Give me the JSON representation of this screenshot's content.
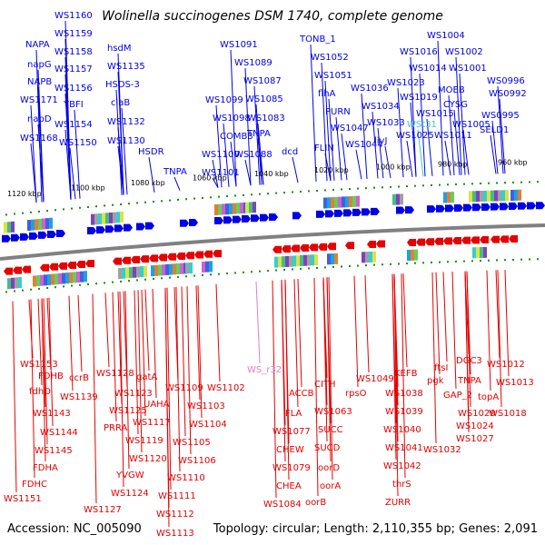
{
  "title": "Wolinella succinogenes DSM 1740, complete genome",
  "accession": "Accession: NC_005090",
  "summary": "Topology: circular; Length: 2,110,355 bp; Genes: 2,091",
  "colors": {
    "forward": "#0000e6",
    "reverse": "#e60000",
    "rna": "#e080c0",
    "trna": "#40c0e0",
    "backbone": "#808080",
    "tick": "#1a8a1a"
  },
  "scale_ticks": [
    "1120 kbp",
    "1100 kbp",
    "1080 kbp",
    "1060 kbp",
    "1040 kbp",
    "1020 kbp",
    "1000 kbp",
    "980 kbp",
    "960 kbp"
  ],
  "top_labels": [
    "WS1160",
    "WS1159",
    "NAPA",
    "WS1158",
    "napG",
    "WS1157",
    "NAPB",
    "WS1156",
    "WS1171",
    "YBFI",
    "napD",
    "WS1154",
    "WS1168",
    "WS1150",
    "hsdM",
    "WS1135",
    "HSDS-3",
    "ciaB",
    "WS1132",
    "WS1130",
    "HSDR",
    "TNPA",
    "WS1091",
    "WS1089",
    "WS1087",
    "WS1099",
    "WS1085",
    "WS1098",
    "WS1083",
    "COMB3",
    "TNPA",
    "WS1100",
    "WS1088",
    "dcd",
    "WS1101",
    "TONB_1",
    "WS1052",
    "WS1051",
    "flhA",
    "PURN",
    "WS1047",
    "FLIN",
    "WS1044",
    "WS1036",
    "WS1034",
    "WS1033",
    "livJ",
    "WS1016",
    "WS1004",
    "WS1002",
    "WS1014",
    "WS1001",
    "WS1023",
    "MOEB",
    "WS0996",
    "WS1019",
    "CYSG",
    "WS0992",
    "WS1015",
    "WS0995",
    "WSt31",
    "WS1005",
    "SELD1",
    "WS1025",
    "WS1011"
  ],
  "bottom_labels": [
    "WS1153",
    "FDHB",
    "ccrB",
    "fdhD",
    "WS1139",
    "WS1143",
    "WS1144",
    "WS1145",
    "FDHA",
    "FDHC",
    "WS1151",
    "WS1128",
    "gatA",
    "WS1123",
    "WS1125",
    "UAHA",
    "WS1117",
    "PRRA",
    "WS1119",
    "WS1120",
    "YVGW",
    "WS1124",
    "WS1127",
    "WS1109",
    "WS1102",
    "WS1103",
    "WS1104",
    "WS1105",
    "WS1106",
    "WS1110",
    "WS1111",
    "WS1112",
    "WS1113",
    "WS_r32",
    "ACCB",
    "CITH",
    "FLA",
    "WS1063",
    "WS1077",
    "SUCC",
    "CHEW",
    "SUCD",
    "WS1079",
    "oorD",
    "CHEA",
    "oorA",
    "WS1084",
    "oorB",
    "WS1049",
    "rpsO",
    "KEFB",
    "WS1038",
    "WS1039",
    "WS1040",
    "WS1041",
    "WS1042",
    "thrS",
    "ZURR",
    "ftsI",
    "DGC3",
    "WS1012",
    "pgk",
    "TNPA",
    "WS1013",
    "GAP_2",
    "topA",
    "WS1029",
    "WS1018",
    "WS1024",
    "WS1027",
    "WS1032"
  ]
}
